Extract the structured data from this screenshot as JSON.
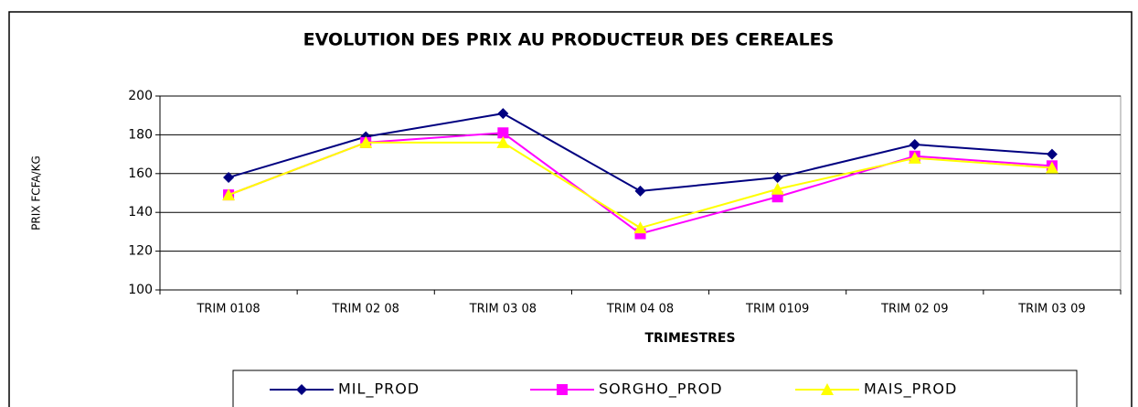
{
  "chart_data": {
    "type": "line",
    "title": "EVOLUTION DES PRIX AU PRODUCTEUR DES CEREALES",
    "x_label": "TRIMESTRES",
    "y_label": "PRIX FCFA/KG",
    "categories": [
      "TRIM 0108",
      "TRIM 02 08",
      "TRIM 03 08",
      "TRIM 04 08",
      "TRIM 0109",
      "TRIM 02 09",
      "TRIM 03 09"
    ],
    "series": [
      {
        "name": "MIL_PROD",
        "color": "#000080",
        "marker": "diamond",
        "values": [
          158,
          179,
          191,
          151,
          158,
          175,
          170
        ]
      },
      {
        "name": "SORGHO_PROD",
        "color": "#ff00ff",
        "marker": "square",
        "values": [
          149,
          176,
          181,
          129,
          148,
          169,
          164
        ]
      },
      {
        "name": "MAIS_PROD",
        "color": "#ffff00",
        "marker": "triangle",
        "values": [
          149,
          176,
          176,
          132,
          152,
          168,
          163
        ]
      }
    ],
    "ylim": [
      100,
      200
    ],
    "yticks": [
      100,
      120,
      140,
      160,
      180,
      200
    ],
    "grid": true,
    "legend": "bottom"
  }
}
